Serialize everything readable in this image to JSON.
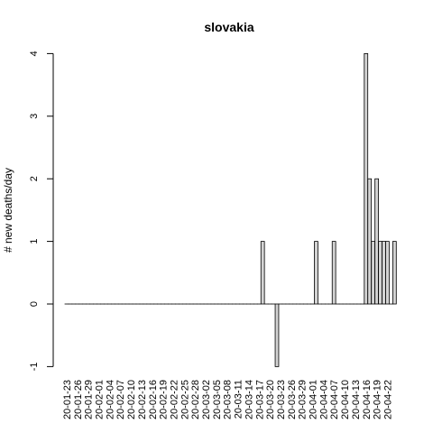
{
  "chart_data": {
    "type": "bar",
    "title": "slovakia",
    "xlabel": "",
    "ylabel": "# new deaths/day",
    "ylim": [
      -1,
      4
    ],
    "yticks": [
      -1,
      0,
      1,
      2,
      3,
      4
    ],
    "tick_labels": [
      "20-01-23",
      "20-01-26",
      "20-01-29",
      "20-02-01",
      "20-02-04",
      "20-02-07",
      "20-02-10",
      "20-02-13",
      "20-02-16",
      "20-02-19",
      "20-02-22",
      "20-02-25",
      "20-02-28",
      "20-03-02",
      "20-03-05",
      "20-03-08",
      "20-03-11",
      "20-03-14",
      "20-03-17",
      "20-03-20",
      "20-03-23",
      "20-03-26",
      "20-03-29",
      "20-04-01",
      "20-04-04",
      "20-04-07",
      "20-04-10",
      "20-04-13",
      "20-04-16",
      "20-04-19",
      "20-04-22"
    ],
    "start_date": "2020-01-23",
    "values": [
      0,
      0,
      0,
      0,
      0,
      0,
      0,
      0,
      0,
      0,
      0,
      0,
      0,
      0,
      0,
      0,
      0,
      0,
      0,
      0,
      0,
      0,
      0,
      0,
      0,
      0,
      0,
      0,
      0,
      0,
      0,
      0,
      0,
      0,
      0,
      0,
      0,
      0,
      0,
      0,
      0,
      0,
      0,
      0,
      0,
      0,
      0,
      0,
      0,
      0,
      0,
      0,
      0,
      0,
      0,
      1,
      0,
      0,
      0,
      -1,
      0,
      0,
      0,
      0,
      0,
      0,
      0,
      0,
      0,
      0,
      1,
      0,
      0,
      0,
      0,
      1,
      0,
      0,
      0,
      0,
      0,
      0,
      0,
      0,
      4,
      2,
      1,
      2,
      1,
      1,
      1,
      0,
      1
    ],
    "grid": false
  }
}
